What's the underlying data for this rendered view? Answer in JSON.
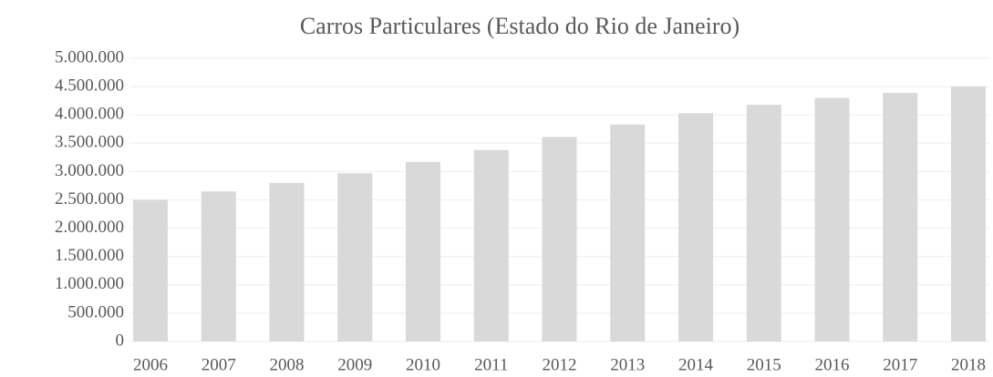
{
  "chart_data": {
    "type": "bar",
    "title": "Carros Particulares (Estado do Rio de Janeiro)",
    "categories": [
      "2006",
      "2007",
      "2008",
      "2009",
      "2010",
      "2011",
      "2012",
      "2013",
      "2014",
      "2015",
      "2016",
      "2017",
      "2018"
    ],
    "values": [
      2500000,
      2650000,
      2800000,
      2970000,
      3170000,
      3380000,
      3610000,
      3830000,
      4030000,
      4180000,
      4300000,
      4390000,
      4500000
    ],
    "color": "#d9d9d9",
    "ylim": [
      0,
      5000000
    ],
    "yticks": [
      0,
      {
        "value": 500000,
        "label": "500.000"
      },
      {
        "value": 1000000,
        "label": "1.000.000"
      },
      {
        "value": 1500000,
        "label": "1.500.000"
      },
      {
        "value": 2000000,
        "label": "2.000.000"
      },
      {
        "value": 2500000,
        "label": "2.500.000"
      },
      {
        "value": 3000000,
        "label": "3.000.000"
      },
      {
        "value": 3500000,
        "label": "3.500.000"
      },
      {
        "value": 4000000,
        "label": "4.000.000"
      },
      {
        "value": 4500000,
        "label": "4.500.000"
      },
      {
        "value": 5000000,
        "label": "5.000.000"
      }
    ],
    "grid": true
  }
}
